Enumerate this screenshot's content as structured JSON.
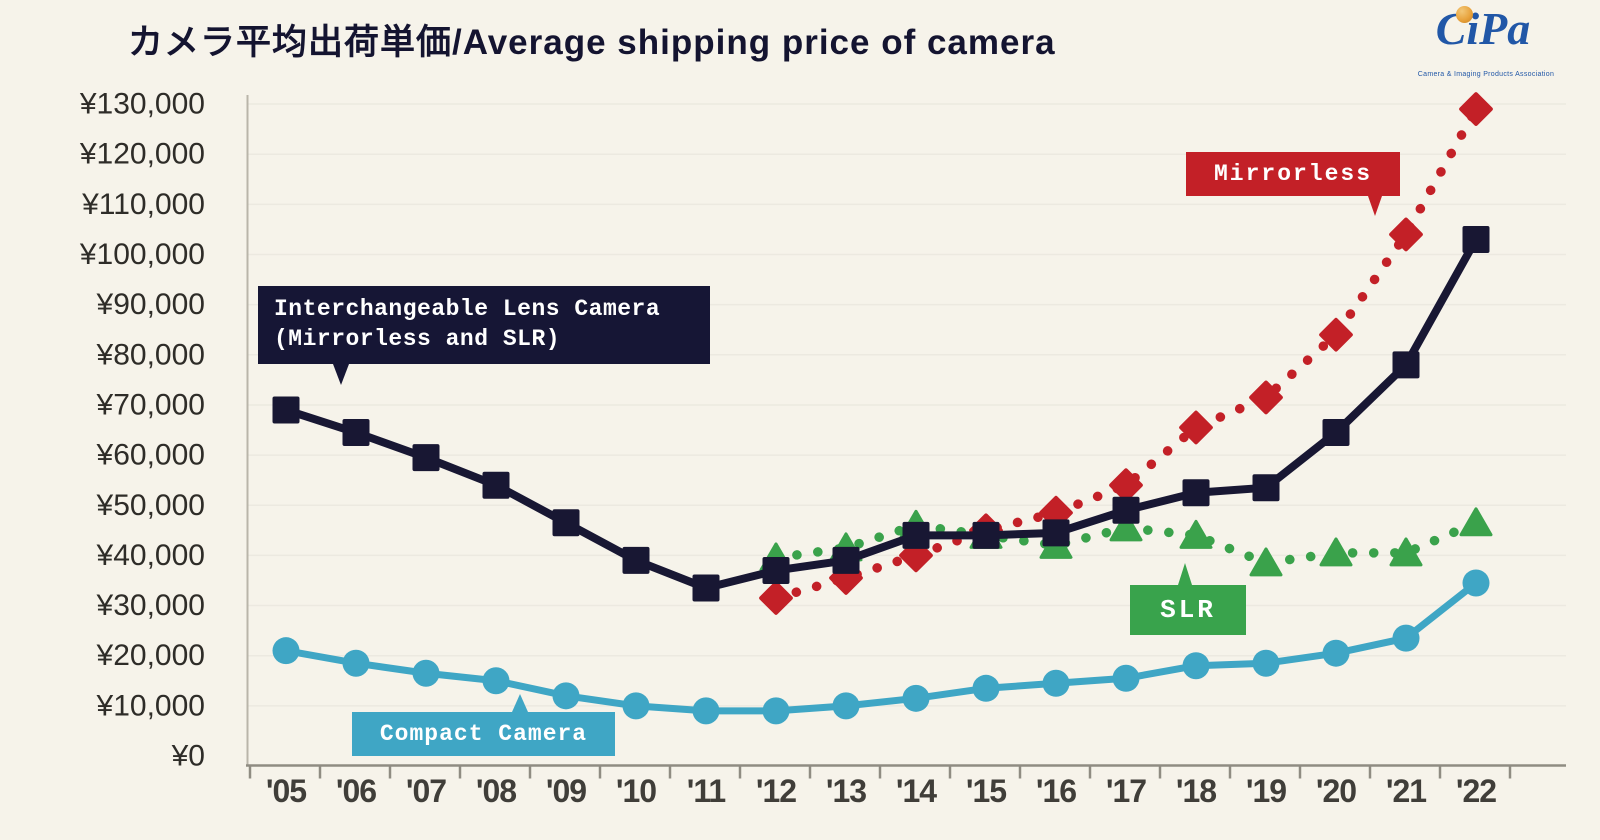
{
  "title": "カメラ平均出荷単価/Average shipping price of camera",
  "logo": {
    "text": "CiPa",
    "caption": "Camera & Imaging Products Association"
  },
  "annotations": {
    "ilc": {
      "line1": "Interchangeable Lens Camera",
      "line2": "(Mirrorless and SLR)"
    },
    "mirrorless": {
      "label": "Mirrorless"
    },
    "slr": {
      "label": "SLR"
    },
    "compact": {
      "label": "Compact Camera"
    }
  },
  "chart_data": {
    "type": "line",
    "title": "カメラ平均出荷単価/Average shipping price of camera",
    "currency_prefix": "¥",
    "ylim": [
      0,
      130000
    ],
    "ytick_step": 10000,
    "grid": "faint-horizontal",
    "x": [
      "'05",
      "'06",
      "'07",
      "'08",
      "'09",
      "'10",
      "'11",
      "'12",
      "'13",
      "'14",
      "'15",
      "'16",
      "'17",
      "'18",
      "'19",
      "'20",
      "'21",
      "'22"
    ],
    "series": [
      {
        "name": "Compact Camera",
        "color": "#3fa6c5",
        "line": "solid",
        "marker": "circle",
        "values": [
          21000,
          18500,
          16500,
          15000,
          12000,
          10000,
          9000,
          9000,
          10000,
          11500,
          13500,
          14500,
          15500,
          18000,
          18500,
          20500,
          23500,
          34500
        ]
      },
      {
        "name": "SLR",
        "color": "#3aa24b",
        "line": "dotted",
        "marker": "triangle",
        "values": [
          null,
          null,
          null,
          null,
          null,
          null,
          null,
          39500,
          41500,
          46000,
          44000,
          42000,
          45500,
          44000,
          38500,
          40500,
          40500,
          46500
        ]
      },
      {
        "name": "Mirrorless",
        "color": "#c32027",
        "line": "dotted",
        "marker": "diamond",
        "values": [
          null,
          null,
          null,
          null,
          null,
          null,
          null,
          31500,
          35500,
          40000,
          45000,
          48500,
          54000,
          65500,
          71500,
          84000,
          104000,
          129000
        ]
      },
      {
        "name": "Interchangeable Lens Camera (Mirrorless and SLR)",
        "color": "#181733",
        "line": "solid",
        "marker": "square",
        "values": [
          69000,
          64500,
          59500,
          54000,
          46500,
          39000,
          33500,
          37000,
          39000,
          44000,
          44000,
          44500,
          49000,
          52500,
          53500,
          64500,
          78000,
          103000
        ]
      }
    ]
  }
}
